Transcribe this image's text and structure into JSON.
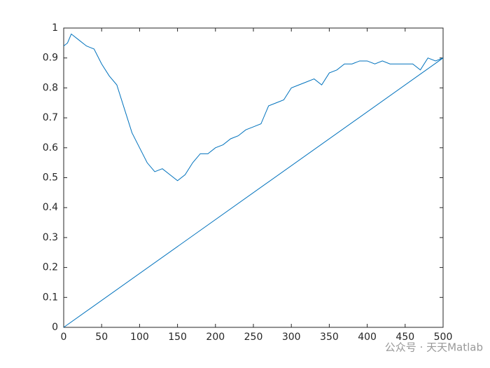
{
  "chart_data": {
    "type": "line",
    "xlim": [
      0,
      500
    ],
    "xticks": [
      0,
      50,
      100,
      150,
      200,
      250,
      300,
      350,
      400,
      450,
      500
    ],
    "ylim": [
      0,
      1
    ],
    "yticks": [
      0,
      0.1,
      0.2,
      0.3,
      0.4,
      0.5,
      0.6,
      0.7,
      0.8,
      0.9,
      1
    ],
    "series": [
      {
        "color": "#0072bd",
        "x": [
          0,
          5,
          10,
          20,
          30,
          40,
          50,
          60,
          70,
          80,
          90,
          100,
          110,
          120,
          130,
          140,
          150,
          160,
          170,
          180,
          190,
          200,
          210,
          220,
          230,
          240,
          250,
          260,
          270,
          280,
          290,
          300,
          310,
          320,
          330,
          340,
          350,
          360,
          370,
          380,
          390,
          400,
          410,
          420,
          430,
          440,
          450,
          460,
          470,
          480,
          490,
          500
        ],
        "values": [
          0.94,
          0.95,
          0.98,
          0.96,
          0.94,
          0.93,
          0.88,
          0.84,
          0.81,
          0.73,
          0.65,
          0.6,
          0.55,
          0.52,
          0.53,
          0.51,
          0.49,
          0.51,
          0.55,
          0.58,
          0.58,
          0.6,
          0.61,
          0.63,
          0.64,
          0.66,
          0.67,
          0.68,
          0.74,
          0.75,
          0.76,
          0.8,
          0.81,
          0.82,
          0.83,
          0.81,
          0.85,
          0.86,
          0.88,
          0.88,
          0.89,
          0.89,
          0.88,
          0.89,
          0.88,
          0.88,
          0.88,
          0.88,
          0.86,
          0.9,
          0.89,
          0.9
        ]
      },
      {
        "color": "#0072bd",
        "x": [
          0,
          500
        ],
        "values": [
          0,
          0.9
        ]
      }
    ],
    "watermark": "公众号 · 天天Matlab"
  }
}
